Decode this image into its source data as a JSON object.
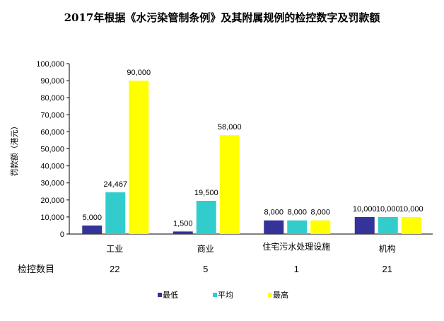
{
  "chart_data": {
    "type": "bar",
    "title": "2017年根据《水污染管制条例》及其附属规例的检控数字及罚款额",
    "ylabel": "罚款额（港元）",
    "xlabel": "",
    "ylim": [
      0,
      100000
    ],
    "yticks": [
      "0",
      "10,000",
      "20,000",
      "30,000",
      "40,000",
      "50,000",
      "60,000",
      "70,000",
      "80,000",
      "90,000",
      "100,000"
    ],
    "categories": [
      "工业",
      "商业",
      "住宅污水处理设施",
      "机构"
    ],
    "series": [
      {
        "name": "最低",
        "color": "#333399",
        "values": [
          5000,
          1500,
          8000,
          10000
        ],
        "labels": [
          "5,000",
          "1,500",
          "8,000",
          "10,000"
        ]
      },
      {
        "name": "平均",
        "color": "#33CCCC",
        "values": [
          24467,
          19500,
          8000,
          10000
        ],
        "labels": [
          "24,467",
          "19,500",
          "8,000",
          "10,000"
        ]
      },
      {
        "name": "最高",
        "color": "#FFFF00",
        "values": [
          90000,
          58000,
          8000,
          10000
        ],
        "labels": [
          "90,000",
          "58,000",
          "8,000",
          "10,000"
        ]
      }
    ],
    "prosecution_label": "检控数目",
    "prosecutions": [
      "22",
      "5",
      "1",
      "21"
    ],
    "legend_position": "bottom"
  }
}
